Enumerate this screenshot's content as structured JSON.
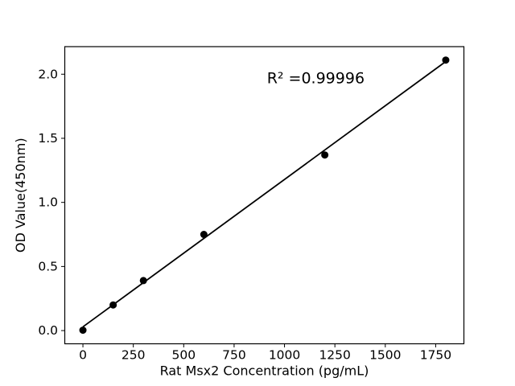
{
  "figure": {
    "background": "#ffffff",
    "axis_color": "#000000",
    "text_color": "#000000"
  },
  "chart_data": {
    "type": "scatter",
    "title": "",
    "xlabel": "Rat Msx2 Concentration (pg/mL)",
    "ylabel": "OD Value(450nm)",
    "points": [
      {
        "x": 0,
        "y": 0.003
      },
      {
        "x": 150,
        "y": 0.2
      },
      {
        "x": 300,
        "y": 0.39
      },
      {
        "x": 600,
        "y": 0.75
      },
      {
        "x": 1200,
        "y": 1.37
      },
      {
        "x": 1800,
        "y": 2.11
      }
    ],
    "fit_line": {
      "slope": 0.00115,
      "intercept": 0.029,
      "x_start": 0,
      "x_end": 1800
    },
    "annotation": {
      "text": "R² =0.99996",
      "x": 1155,
      "y": 1.93
    },
    "xlim": [
      -90,
      1890
    ],
    "ylim": [
      -0.103,
      2.215
    ],
    "xticks": [
      0,
      250,
      500,
      750,
      1000,
      1250,
      1500,
      1750
    ],
    "yticks": [
      0.0,
      0.5,
      1.0,
      1.5,
      2.0
    ],
    "ytick_decimals": 1,
    "grid": false,
    "legend": null,
    "marker_color": "#000000",
    "line_color": "#000000",
    "marker_radius": 4.5
  }
}
